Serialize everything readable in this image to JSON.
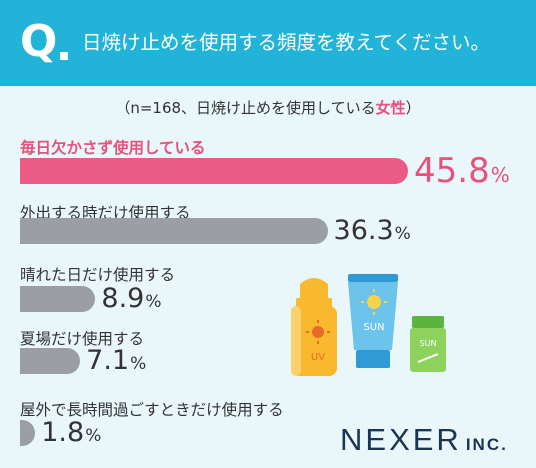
{
  "header": {
    "q_mark": "Q",
    "question": "日焼け止めを使用する頻度を教えてください。"
  },
  "note": {
    "prefix": "（n=168、日焼け止めを使用している",
    "emphasis": "女性",
    "suffix": "）"
  },
  "colors": {
    "header_bg": "#21b4d8",
    "highlight": "#ec5b86",
    "bar_default": "#9b9ea5",
    "background": "#e9f7fb"
  },
  "chart_data": {
    "type": "bar",
    "orientation": "horizontal",
    "unit": "%",
    "categories": [
      "毎日欠かさず使用している",
      "外出する時だけ使用する",
      "晴れた日だけ使用する",
      "夏場だけ使用する",
      "屋外で長時間過ごすときだけ使用する"
    ],
    "values": [
      45.8,
      36.3,
      8.9,
      7.1,
      1.8
    ],
    "value_labels": [
      "45.8",
      "36.3",
      "8.9",
      "7.1",
      "1.8"
    ],
    "highlight_index": 0
  },
  "illustration": {
    "uv_text": "UV",
    "sun_text": "SUN",
    "sun_small_text": "SUN"
  },
  "logo": {
    "name": "NEXER",
    "suffix": "INC."
  }
}
